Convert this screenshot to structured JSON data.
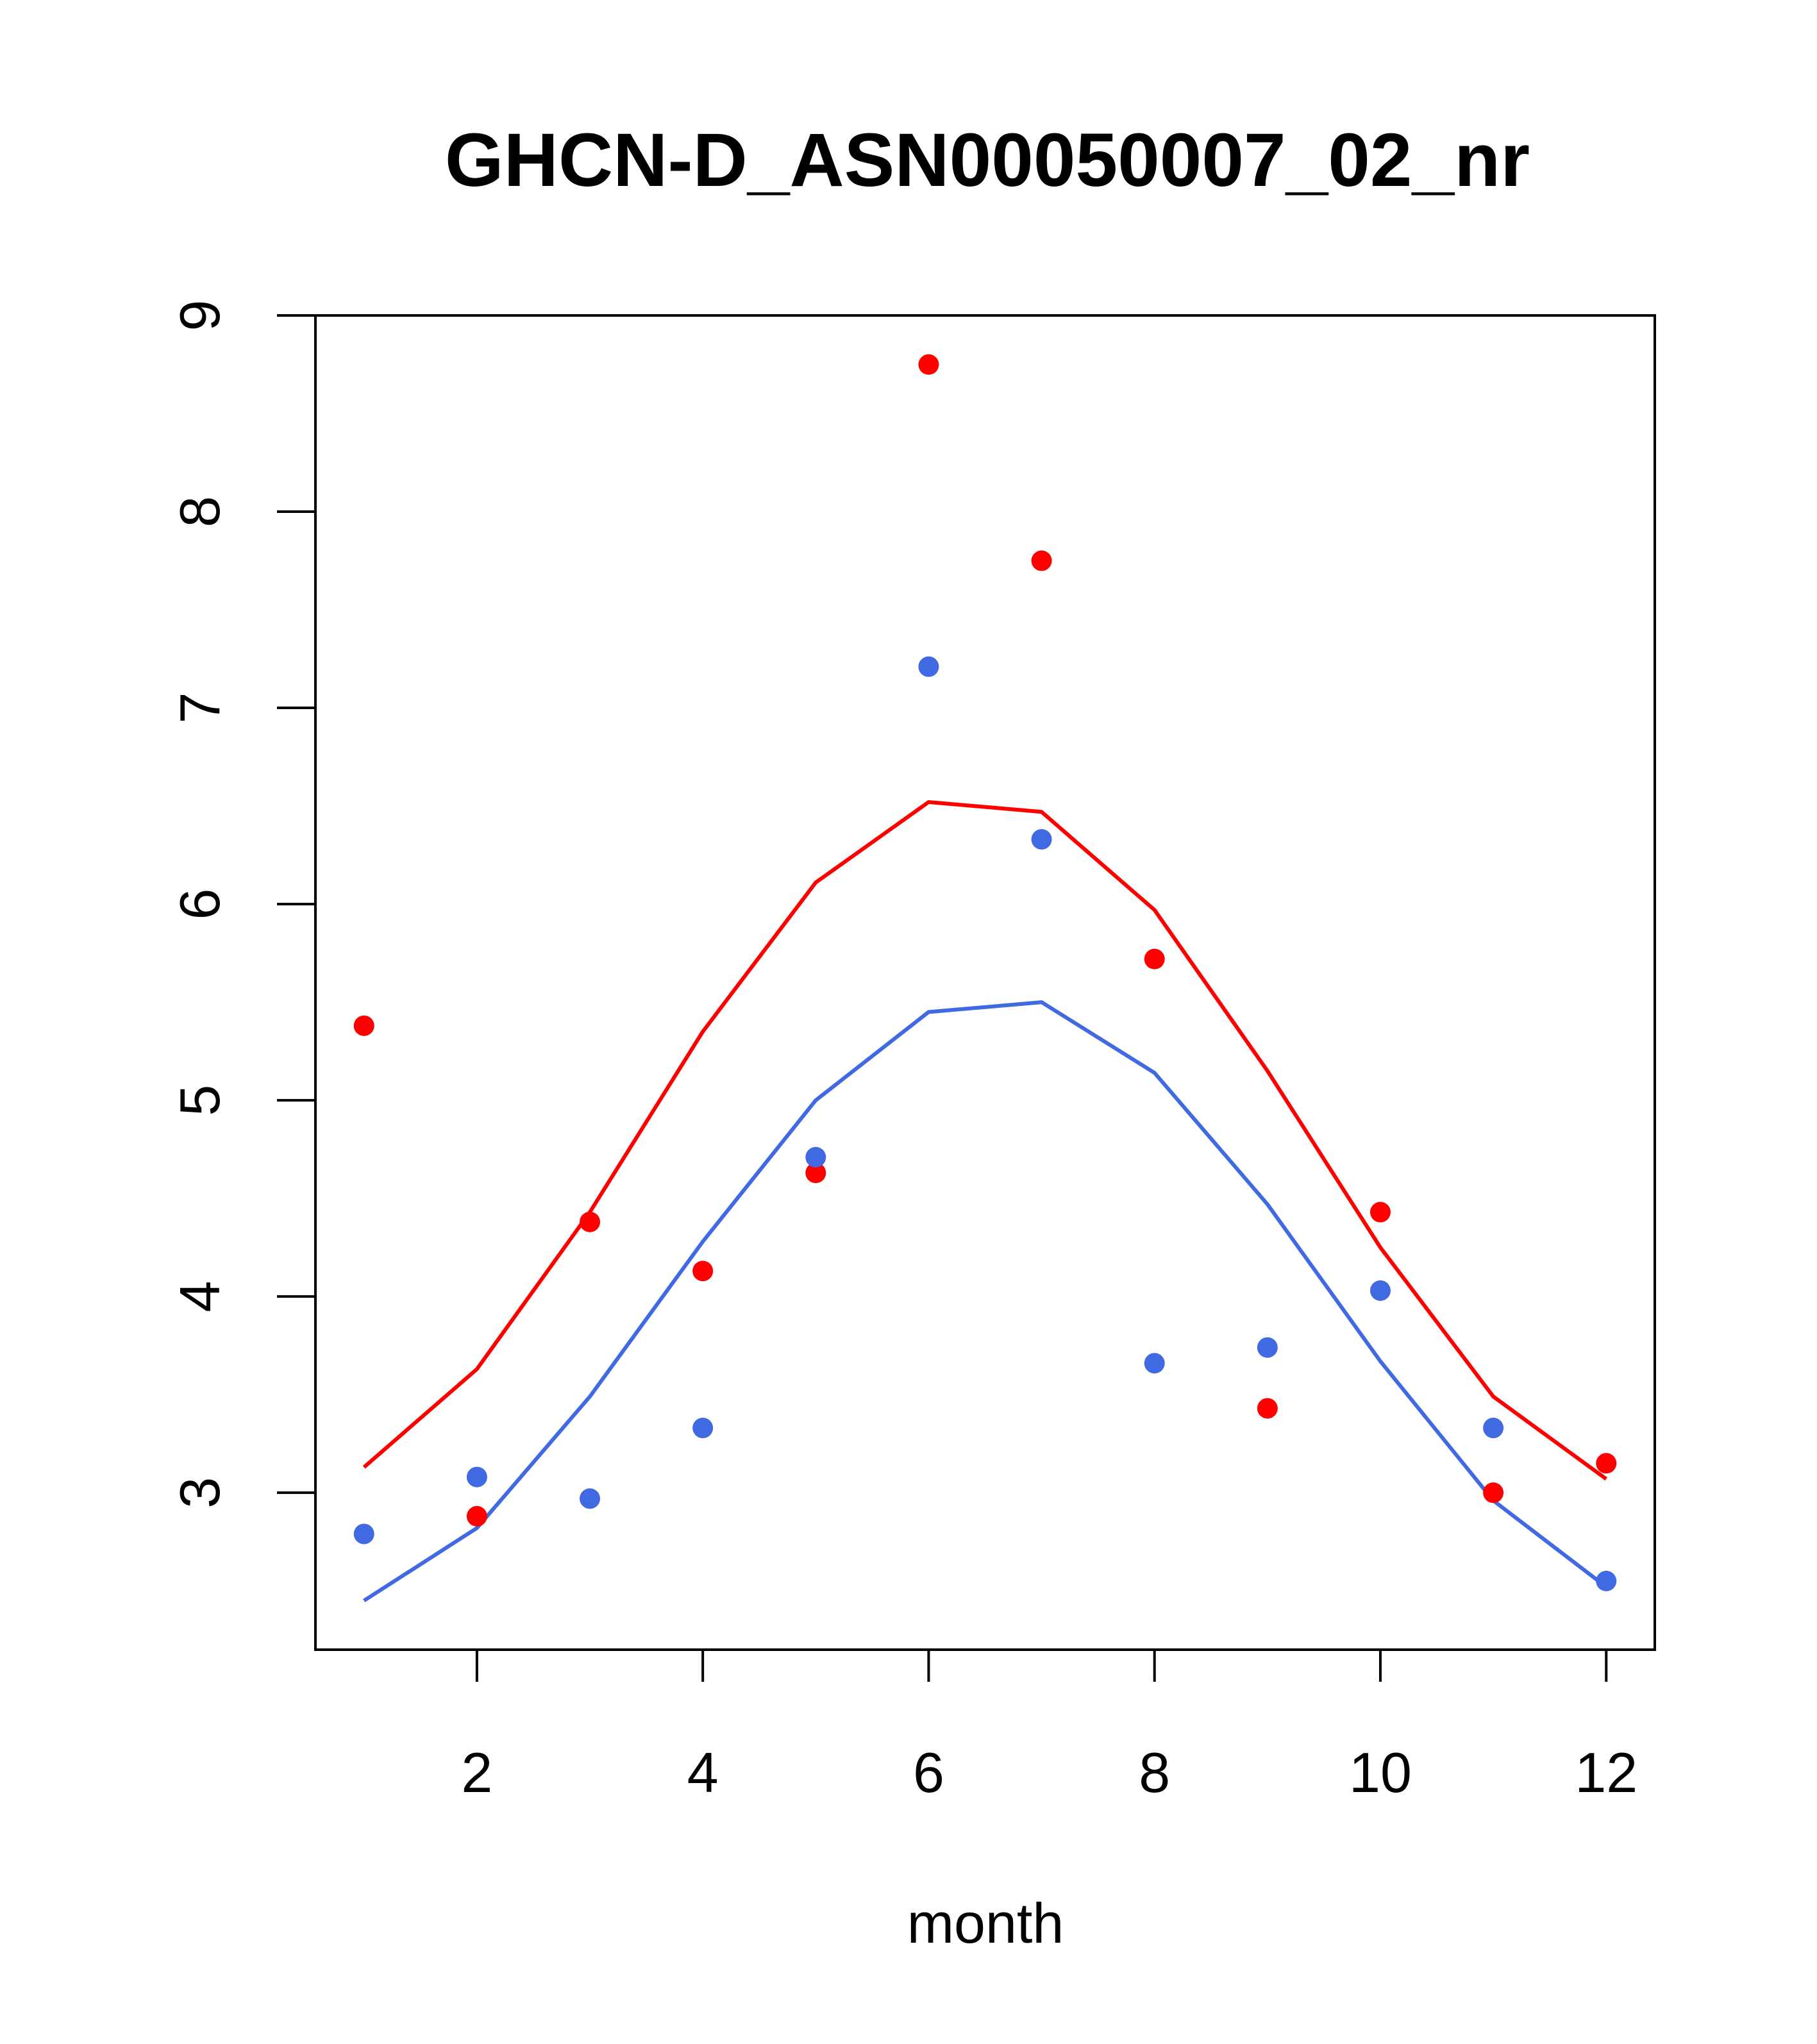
{
  "chart_data": {
    "type": "line",
    "title": "GHCN-D_ASN00050007_02_nr",
    "xlabel": "month",
    "ylabel": "",
    "xlim": [
      0.57,
      12.43
    ],
    "ylim": [
      2.2,
      9.0
    ],
    "xticks": [
      2,
      4,
      6,
      8,
      10,
      12
    ],
    "yticks": [
      3,
      4,
      5,
      6,
      7,
      8,
      9
    ],
    "x": [
      1,
      2,
      3,
      4,
      5,
      6,
      7,
      8,
      9,
      10,
      11,
      12
    ],
    "series": [
      {
        "name": "red line",
        "kind": "line",
        "color": "#ff0000",
        "values": [
          3.13,
          3.63,
          4.43,
          5.35,
          6.11,
          6.52,
          6.47,
          5.97,
          5.15,
          4.25,
          3.49,
          3.07
        ]
      },
      {
        "name": "blue line",
        "kind": "line",
        "color": "#4169e1",
        "values": [
          2.45,
          2.82,
          3.49,
          4.28,
          5.0,
          5.45,
          5.5,
          5.14,
          4.47,
          3.67,
          2.96,
          2.52
        ]
      },
      {
        "name": "red points",
        "kind": "points",
        "color": "#ff0000",
        "values": [
          5.38,
          2.88,
          4.38,
          4.13,
          4.63,
          8.75,
          7.75,
          5.72,
          3.43,
          4.43,
          3.0,
          3.15
        ]
      },
      {
        "name": "blue points",
        "kind": "points",
        "color": "#4169e1",
        "values": [
          2.79,
          3.08,
          2.97,
          3.33,
          4.71,
          7.21,
          6.33,
          3.66,
          3.74,
          4.03,
          3.33,
          2.55
        ]
      }
    ]
  }
}
